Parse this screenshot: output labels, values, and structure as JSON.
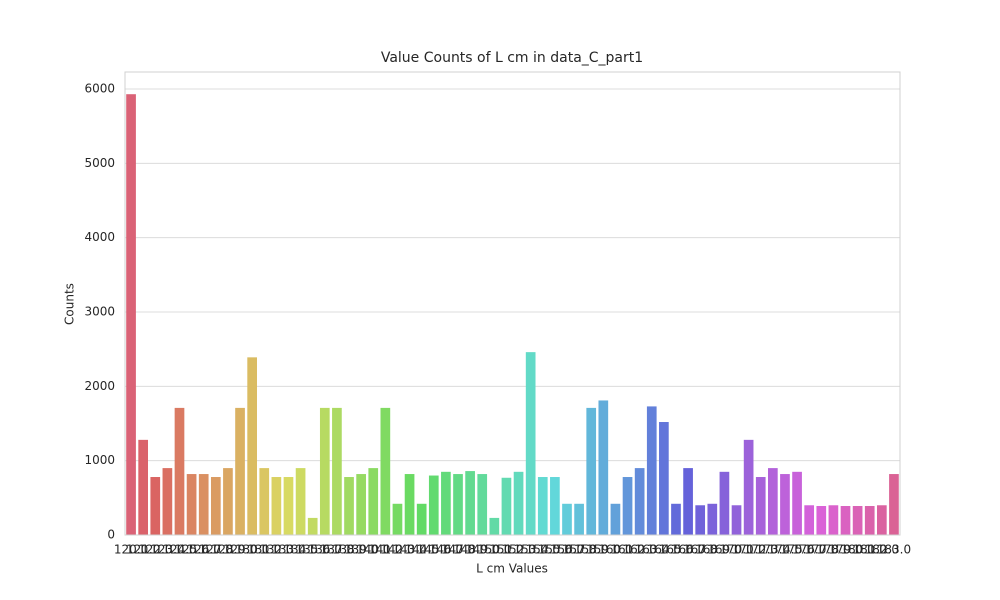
{
  "chart_data": {
    "type": "bar",
    "title": "Value Counts of L cm in data_C_part1",
    "x_label": "L cm Values",
    "y_label": "Counts",
    "categories": [
      "120.0",
      "121.0",
      "122.0",
      "123.0",
      "124.0",
      "125.0",
      "126.0",
      "127.0",
      "128.0",
      "129.0",
      "130.0",
      "131.0",
      "132.0",
      "133.0",
      "134.0",
      "135.0",
      "136.0",
      "137.0",
      "138.0",
      "139.0",
      "140.0",
      "141.0",
      "142.0",
      "143.0",
      "144.0",
      "145.0",
      "146.0",
      "147.0",
      "148.0",
      "149.0",
      "150.0",
      "151.0",
      "152.0",
      "153.0",
      "154.0",
      "155.0",
      "156.0",
      "157.0",
      "158.0",
      "159.0",
      "160.0",
      "161.0",
      "162.0",
      "163.0",
      "164.0",
      "165.0",
      "166.0",
      "167.0",
      "168.0",
      "169.0",
      "170.0",
      "171.0",
      "172.0",
      "173.0",
      "174.0",
      "175.0",
      "176.0",
      "177.0",
      "178.0",
      "179.0",
      "180.0",
      "181.0",
      "182.0",
      "183.0"
    ],
    "values": [
      5930,
      1280,
      780,
      900,
      1710,
      820,
      820,
      780,
      900,
      1710,
      2390,
      900,
      780,
      780,
      900,
      230,
      1710,
      1710,
      780,
      820,
      900,
      1710,
      420,
      820,
      420,
      800,
      850,
      820,
      860,
      820,
      230,
      770,
      850,
      2460,
      780,
      780,
      420,
      420,
      1710,
      1810,
      420,
      780,
      900,
      1730,
      1520,
      420,
      900,
      400,
      420,
      850,
      400,
      1280,
      780,
      900,
      820,
      850,
      400,
      390,
      400,
      390,
      390,
      390,
      400,
      820
    ],
    "ylim": [
      0,
      6000
    ],
    "yticks": [
      0,
      1000,
      2000,
      3000,
      4000,
      5000,
      6000
    ],
    "grid": true
  }
}
